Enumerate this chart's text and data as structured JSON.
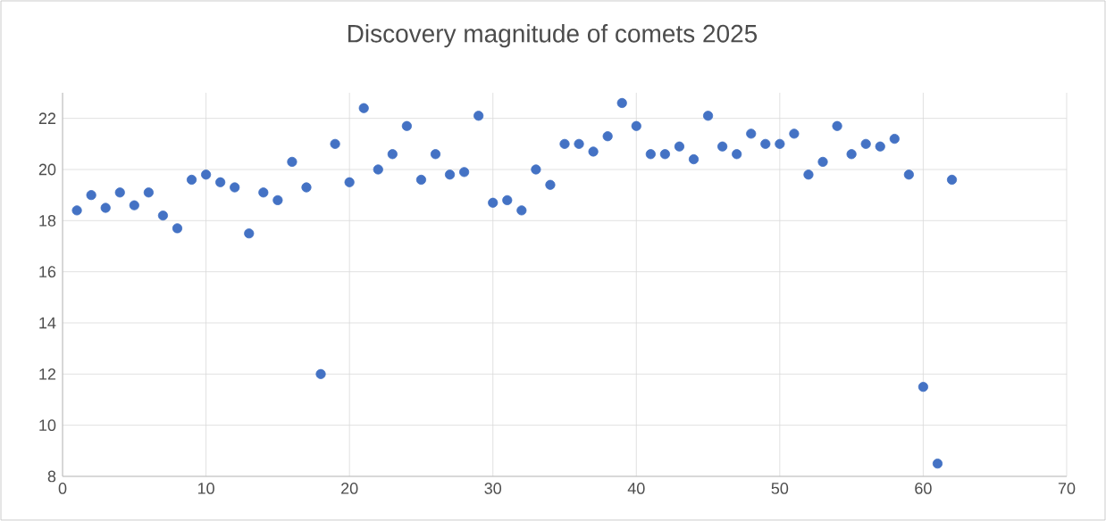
{
  "chart_data": {
    "type": "scatter",
    "title": "Discovery magnitude of comets 2025",
    "x": [
      1,
      2,
      3,
      4,
      5,
      6,
      7,
      8,
      9,
      10,
      11,
      12,
      13,
      14,
      15,
      16,
      17,
      18,
      19,
      20,
      21,
      22,
      23,
      24,
      25,
      26,
      27,
      28,
      29,
      30,
      31,
      32,
      33,
      34,
      35,
      36,
      37,
      38,
      39,
      40,
      41,
      42,
      43,
      44,
      45,
      46,
      47,
      48,
      49,
      50,
      51,
      52,
      53,
      54,
      55,
      56,
      57,
      58,
      59,
      60,
      61,
      62
    ],
    "values": [
      18.4,
      19.0,
      18.5,
      19.1,
      18.6,
      19.1,
      18.2,
      17.7,
      19.6,
      19.8,
      19.5,
      19.3,
      17.5,
      19.1,
      18.8,
      20.3,
      19.3,
      12.0,
      21.0,
      19.5,
      22.4,
      20.0,
      20.6,
      21.7,
      19.6,
      20.6,
      19.8,
      19.9,
      22.1,
      18.7,
      18.8,
      18.4,
      20.0,
      19.4,
      21.0,
      21.0,
      20.7,
      21.3,
      22.6,
      21.7,
      20.6,
      20.6,
      20.9,
      20.4,
      22.1,
      20.9,
      20.6,
      21.4,
      21.0,
      21.0,
      21.4,
      19.8,
      20.3,
      21.7,
      20.6,
      21.0,
      20.9,
      21.2,
      19.8,
      11.5,
      8.5,
      19.6
    ],
    "color": "#4472c4",
    "marker": "circle",
    "xlim": [
      0,
      70
    ],
    "xticks": [
      0,
      10,
      20,
      30,
      40,
      50,
      60,
      70
    ],
    "ylim": [
      8,
      23
    ],
    "yticks": [
      8,
      10,
      12,
      14,
      16,
      18,
      20,
      22
    ],
    "grid": true
  }
}
